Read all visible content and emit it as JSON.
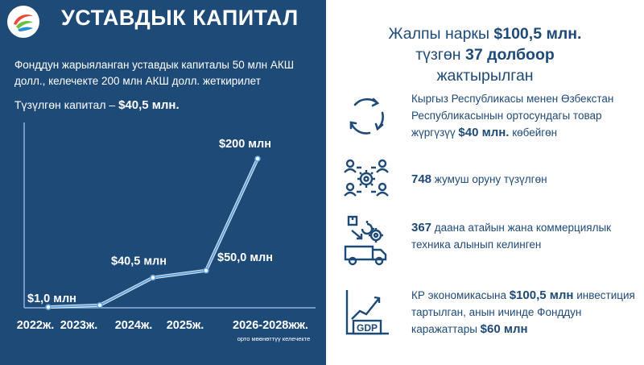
{
  "header": {
    "title": "УСТАВДЫК КАПИТАЛ"
  },
  "left": {
    "description": "Фонддун жарыяланган уставдык капиталы 50 млн АКШ долл., келечекте 200 млн АКШ долл. жеткирилет",
    "capital_label": "Түзүлгөн капитал – ",
    "capital_value": "$40,5 млн."
  },
  "colors": {
    "panel": "#1e4a78",
    "line": "#5fa3e0",
    "text_blue": "#1e4a78"
  },
  "chart_data": {
    "type": "line",
    "categories": [
      "2022ж.",
      "2023ж.",
      "2024ж.",
      "2025ж.",
      "2026-2028жж."
    ],
    "values": [
      1.0,
      3.5,
      40.5,
      50.0,
      200
    ],
    "data_labels": [
      "$1,0 млн",
      "",
      "$40,5 млн",
      "$50,0 млн",
      "$200 млн"
    ],
    "category_note": "орто мөөнөттүү келечекте",
    "ylim": [
      0,
      240
    ],
    "grid": false
  },
  "right": {
    "headline": {
      "line1_pre": "Жалпы наркы ",
      "line1_bold": "$100,5 млн.",
      "line2_pre": "түзгөн ",
      "line2_bold": "37 долбоор",
      "line3": "жактырылган"
    },
    "items": [
      {
        "icon": "cycle-arrows-icon",
        "pre": "Кыргыз Республикасы менен Өзбекстан Республикасынын ортосундагы товар жүргүзүү ",
        "bold": "$40 млн.",
        "post": " көбейгөн"
      },
      {
        "icon": "people-gear-icon",
        "pre": "",
        "bold": "748",
        "post": " жумуш оруну түзүлгөн"
      },
      {
        "icon": "truck-gear-icon",
        "pre": "",
        "bold": "367",
        "post": " даана атайын жана коммерциялык техника алынып келинген"
      },
      {
        "icon": "gdp-chart-icon",
        "pre": "КР экономикасына ",
        "bold": "$100,5 млн",
        "post": " инвестиция тартылган, анын ичинде Фонддун каражаттары ",
        "bold2": "$60 млн"
      }
    ],
    "gdp_label": "GDP"
  }
}
